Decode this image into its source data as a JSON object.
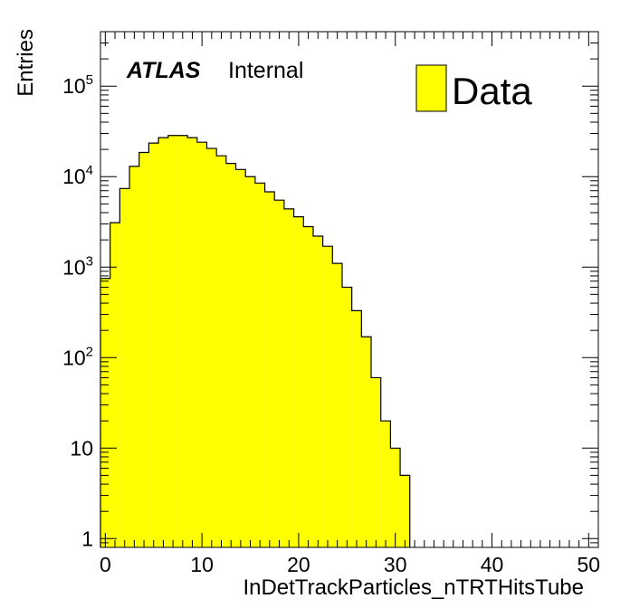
{
  "chart_data": {
    "type": "bar",
    "histogram": true,
    "fill_color": "#ffff00",
    "edge_color": "#000000",
    "xlabel": "InDetTrackParticles_nTRTHitsTube",
    "ylabel": "Entries",
    "y_scale": "log",
    "xlim": [
      -0.5,
      51.0
    ],
    "ylim": [
      0.8,
      400000
    ],
    "x_ticks": [
      {
        "value": 0,
        "label": "0"
      },
      {
        "value": 10,
        "label": "10"
      },
      {
        "value": 20,
        "label": "20"
      },
      {
        "value": 30,
        "label": "30"
      },
      {
        "value": 40,
        "label": "40"
      },
      {
        "value": 50,
        "label": "50"
      }
    ],
    "y_ticks": [
      {
        "value": 1,
        "base": "1",
        "exp": ""
      },
      {
        "value": 10,
        "base": "10",
        "exp": ""
      },
      {
        "value": 100,
        "base": "10",
        "exp": "2"
      },
      {
        "value": 1000,
        "base": "10",
        "exp": "3"
      },
      {
        "value": 10000,
        "base": "10",
        "exp": "4"
      },
      {
        "value": 100000,
        "base": "10",
        "exp": "5"
      }
    ],
    "bin_edges": [
      -0.5,
      0.5,
      1.5,
      2.5,
      3.5,
      4.5,
      5.5,
      6.5,
      7.5,
      8.5,
      9.5,
      10.5,
      11.5,
      12.5,
      13.5,
      14.5,
      15.5,
      16.5,
      17.5,
      18.5,
      19.5,
      20.5,
      21.5,
      22.5,
      23.5,
      24.5,
      25.5,
      26.5,
      27.5,
      28.5,
      29.5,
      30.5,
      31.5
    ],
    "values": [
      750,
      3100,
      7400,
      13000,
      18500,
      23500,
      27000,
      28500,
      28500,
      27000,
      24000,
      20500,
      17000,
      14000,
      12000,
      10000,
      8500,
      6800,
      5500,
      4400,
      3600,
      2800,
      2200,
      1700,
      1100,
      600,
      330,
      170,
      60,
      20,
      10,
      5
    ],
    "legend": {
      "position": "top-right",
      "label": "Data"
    }
  },
  "annotation": {
    "brand": "ATLAS",
    "status": "Internal"
  }
}
